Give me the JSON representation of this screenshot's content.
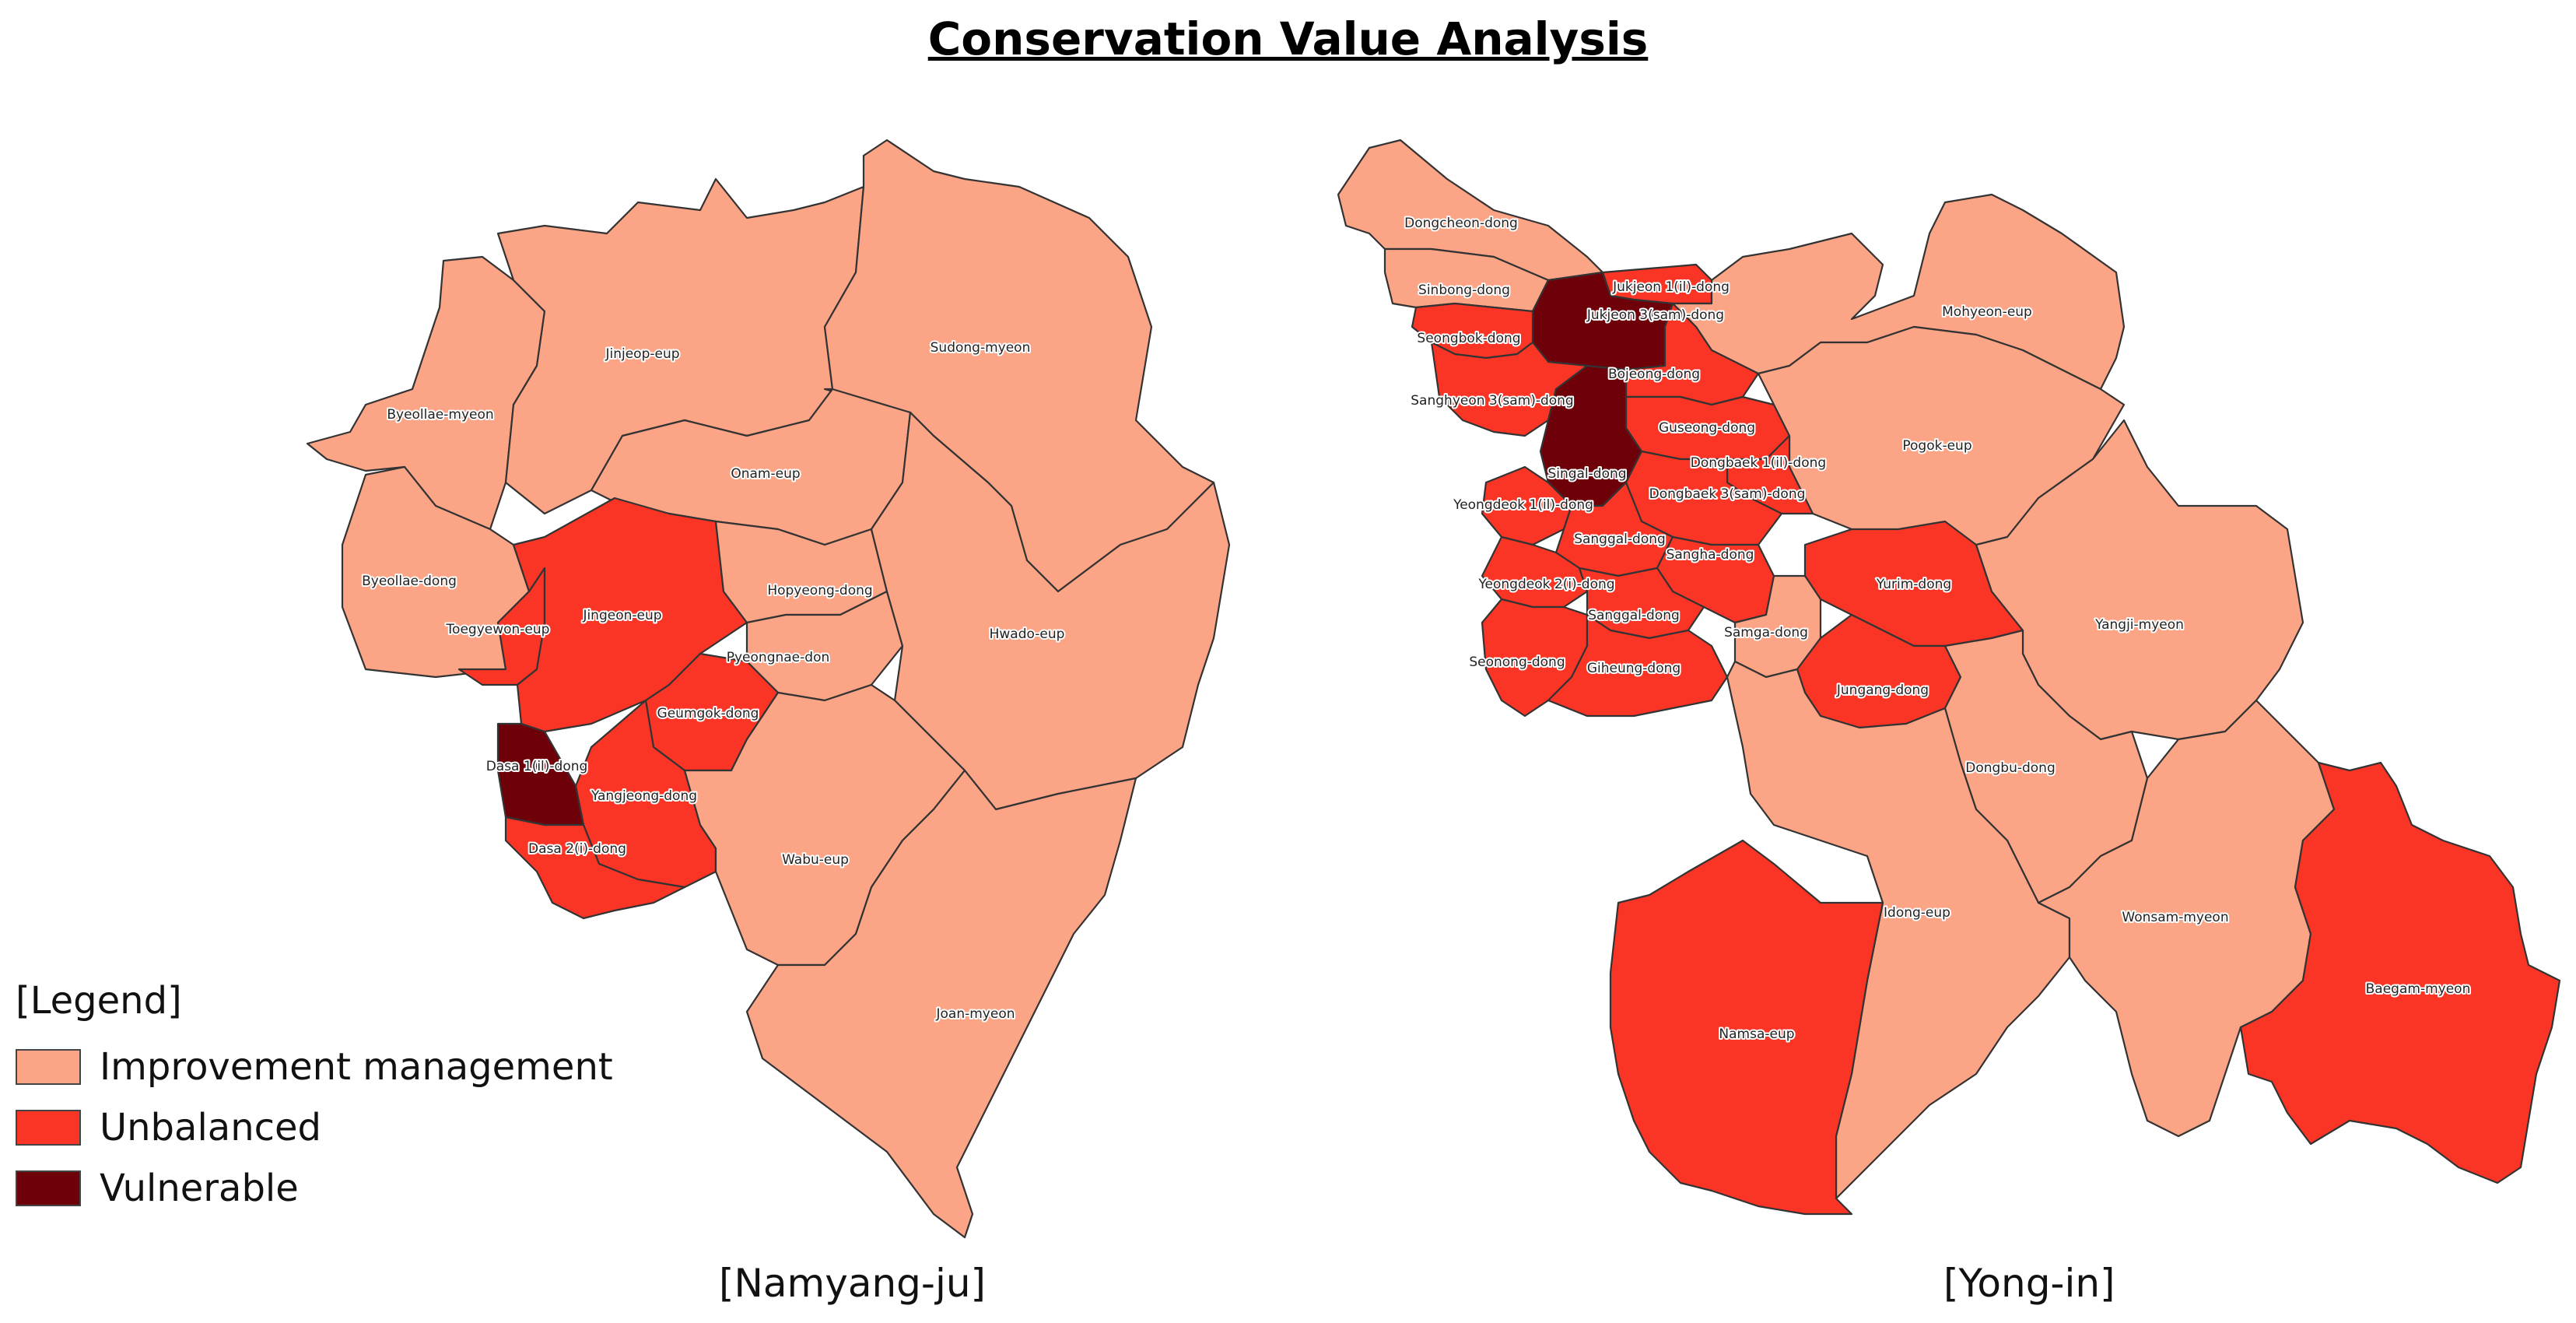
{
  "title": "Conservation Value Analysis",
  "colors": {
    "improvement": "#FCA486",
    "unbalanced": "#FB3526",
    "vulnerable": "#6E0009",
    "border": "#333333"
  },
  "legend": {
    "title": "[Legend]",
    "items": [
      {
        "label": "Improvement management",
        "color": "#FCA486"
      },
      {
        "label": "Unbalanced",
        "color": "#FB3526"
      },
      {
        "label": "Vulnerable",
        "color": "#6E0009"
      }
    ]
  },
  "maps": [
    {
      "caption": "[Namyang-ju]",
      "regions": [
        {
          "name": "Jinjeop-eup",
          "category": "improvement"
        },
        {
          "name": "Sudong-myeon",
          "category": "improvement"
        },
        {
          "name": "Byeollae-myeon",
          "category": "improvement"
        },
        {
          "name": "Onam-eup",
          "category": "improvement"
        },
        {
          "name": "Byeollae-dong",
          "category": "improvement"
        },
        {
          "name": "Hopyeong-dong",
          "category": "improvement"
        },
        {
          "name": "Toegyewon-eup",
          "category": "unbalanced"
        },
        {
          "name": "Jingeon-eup",
          "category": "unbalanced"
        },
        {
          "name": "Hwado-eup",
          "category": "improvement"
        },
        {
          "name": "Pyeongnae-don",
          "category": "improvement"
        },
        {
          "name": "Geumgok-dong",
          "category": "unbalanced"
        },
        {
          "name": "Dasa 1(il)-dong",
          "category": "vulnerable"
        },
        {
          "name": "Yangjeong-dong",
          "category": "unbalanced"
        },
        {
          "name": "Dasa 2(i)-dong",
          "category": "unbalanced"
        },
        {
          "name": "Wabu-eup",
          "category": "improvement"
        },
        {
          "name": "Joan-myeon",
          "category": "improvement"
        }
      ]
    },
    {
      "caption": "[Yong-in]",
      "regions": [
        {
          "name": "Dongcheon-dong",
          "category": "improvement"
        },
        {
          "name": "Sinbong-dong",
          "category": "improvement"
        },
        {
          "name": "Jukjeon 1(il)-dong",
          "category": "unbalanced"
        },
        {
          "name": "Jukjeon 3(sam)-dong",
          "category": "vulnerable"
        },
        {
          "name": "Seongbok-dong",
          "category": "unbalanced"
        },
        {
          "name": "Mohyeon-eup",
          "category": "improvement"
        },
        {
          "name": "Bojeong-dong",
          "category": "unbalanced"
        },
        {
          "name": "Sanghyeon 3(sam)-dong",
          "category": "unbalanced"
        },
        {
          "name": "Guseong-dong",
          "category": "unbalanced"
        },
        {
          "name": "Pogok-eup",
          "category": "improvement"
        },
        {
          "name": "Dongbaek 1(il)-dong",
          "category": "unbalanced"
        },
        {
          "name": "Singal-dong",
          "category": "vulnerable"
        },
        {
          "name": "Dongbaek 3(sam)-dong",
          "category": "unbalanced"
        },
        {
          "name": "Yeongdeok 1(il)-dong",
          "category": "unbalanced"
        },
        {
          "name": "Sanggal-dong",
          "category": "unbalanced"
        },
        {
          "name": "Sangha-dong",
          "category": "unbalanced"
        },
        {
          "name": "Yurim-dong",
          "category": "unbalanced"
        },
        {
          "name": "Yeongdeok 2(i)-dong",
          "category": "unbalanced"
        },
        {
          "name": "Sanggal-dong",
          "category": "unbalanced"
        },
        {
          "name": "Samga-dong",
          "category": "improvement"
        },
        {
          "name": "Yangji-myeon",
          "category": "improvement"
        },
        {
          "name": "Seonong-dong",
          "category": "unbalanced"
        },
        {
          "name": "Giheung-dong",
          "category": "unbalanced"
        },
        {
          "name": "Jungang-dong",
          "category": "unbalanced"
        },
        {
          "name": "Dongbu-dong",
          "category": "improvement"
        },
        {
          "name": "Idong-eup",
          "category": "improvement"
        },
        {
          "name": "Wonsam-myeon",
          "category": "improvement"
        },
        {
          "name": "Baegam-myeon",
          "category": "unbalanced"
        },
        {
          "name": "Namsa-eup",
          "category": "unbalanced"
        }
      ]
    }
  ]
}
